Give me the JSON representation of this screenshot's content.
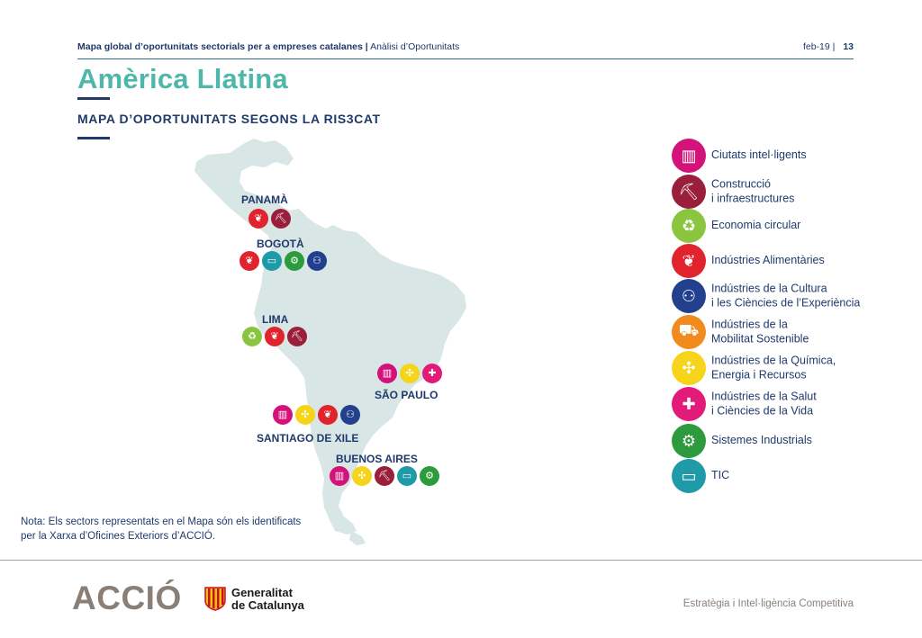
{
  "header": {
    "title": "Mapa global d’oportunitats sectorials per a empreses catalanes",
    "separator": "|",
    "subtitle": "Anàlisi d’Oportunitats",
    "date": "feb-19",
    "date_sep": "|",
    "page": "13"
  },
  "title": "Amèrica Llatina",
  "subtitle": "MAPA D’OPORTUNITATS SEGONS LA RIS3CAT",
  "colors": {
    "ciutats": "#d4137a",
    "construccio": "#9a1f3b",
    "economia": "#8bc53f",
    "alimentaries": "#e0232d",
    "cultura": "#23408e",
    "mobilitat": "#f28b1d",
    "quimica": "#f6d41a",
    "salut": "#e21a78",
    "sistemes": "#2d9b3d",
    "tic": "#1f9aa8"
  },
  "cities": [
    {
      "name": "PANAMÀ",
      "sectors": [
        "alimentaries",
        "construccio"
      ]
    },
    {
      "name": "BOGOTÀ",
      "sectors": [
        "alimentaries",
        "tic",
        "sistemes",
        "cultura"
      ]
    },
    {
      "name": "LIMA",
      "sectors": [
        "economia",
        "alimentaries",
        "construccio"
      ]
    },
    {
      "name": "SÃO PAULO",
      "sectors": [
        "ciutats",
        "quimica",
        "salut"
      ]
    },
    {
      "name": "SANTIAGO DE XILE",
      "sectors": [
        "ciutats",
        "quimica",
        "alimentaries",
        "cultura"
      ]
    },
    {
      "name": "BUENOS AIRES",
      "sectors": [
        "ciutats",
        "quimica",
        "construccio",
        "tic",
        "sistemes"
      ]
    }
  ],
  "legend": [
    {
      "key": "ciutats",
      "icon": "building-icon",
      "label": "Ciutats intel·ligents"
    },
    {
      "key": "construccio",
      "icon": "excavator-icon",
      "label": "Construcció\ni infraestructures"
    },
    {
      "key": "economia",
      "icon": "recycle-icon",
      "label": "Economia circular"
    },
    {
      "key": "alimentaries",
      "icon": "wheat-icon",
      "label": "Indústries Alimentàries"
    },
    {
      "key": "cultura",
      "icon": "people-icon",
      "label": "Indústries de la Cultura\ni les Ciències de l’Experiència"
    },
    {
      "key": "mobilitat",
      "icon": "car-icon",
      "label": "Indústries de la\nMobilitat Sostenible"
    },
    {
      "key": "quimica",
      "icon": "wind-turbine-icon",
      "label": "Indústries de la Química,\nEnergia i Recursos"
    },
    {
      "key": "salut",
      "icon": "medical-case-icon",
      "label": "Indústries de la Salut\ni Ciències de la Vida"
    },
    {
      "key": "sistemes",
      "icon": "gears-icon",
      "label": "Sistemes Industrials"
    },
    {
      "key": "tic",
      "icon": "computer-icon",
      "label": "TIC"
    }
  ],
  "note": "Nota: Els sectors representats en el Mapa són els identificats per la Xarxa d’Oficines Exteriors d’ACCIÓ.",
  "footer": {
    "brand": "ACCIÓ",
    "gen_line1": "Generalitat",
    "gen_line2": "de Catalunya",
    "right": "Estratègia i Intel·ligència Competitiva"
  }
}
